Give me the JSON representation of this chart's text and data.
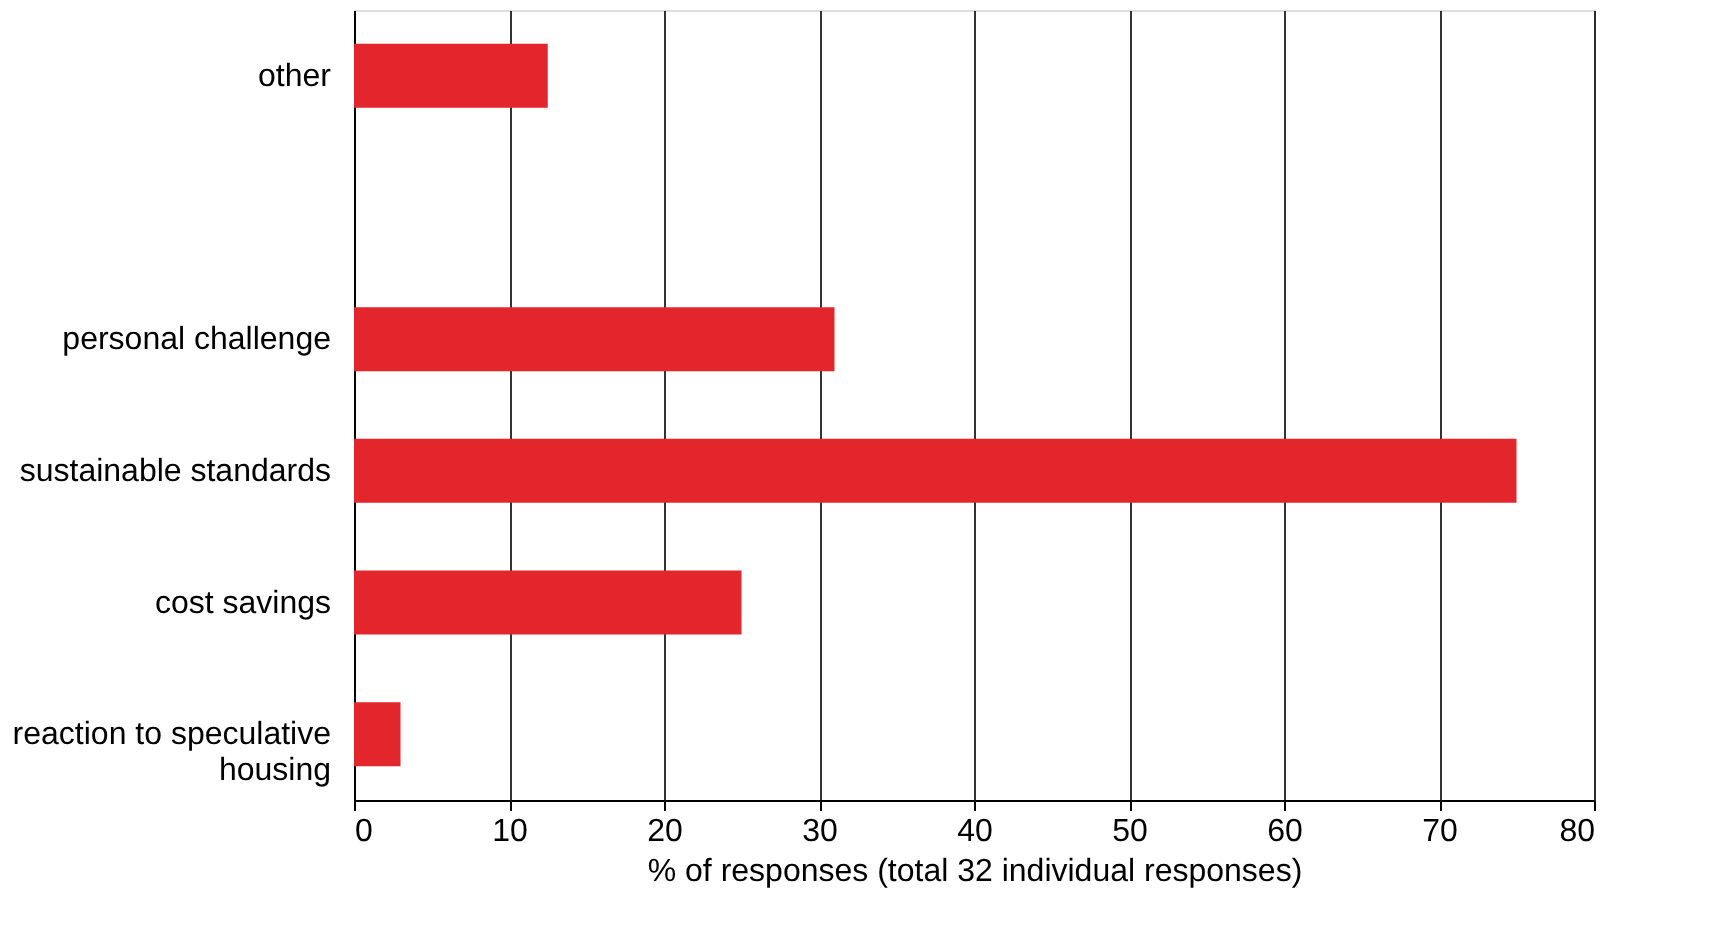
{
  "chart_data": {
    "type": "bar",
    "orientation": "horizontal",
    "xlabel": "% of responses (total 32 individual responses)",
    "categories": [
      "other",
      null,
      "personal challenge",
      "sustainable standards",
      "cost savings",
      "reaction to speculative housing"
    ],
    "values": [
      12.5,
      null,
      31,
      75,
      25,
      3
    ],
    "color": "#e3262b",
    "xlim": [
      0,
      80
    ],
    "xticks": [
      0,
      10,
      20,
      30,
      40,
      50,
      60,
      70,
      80
    ],
    "grid": "x"
  }
}
